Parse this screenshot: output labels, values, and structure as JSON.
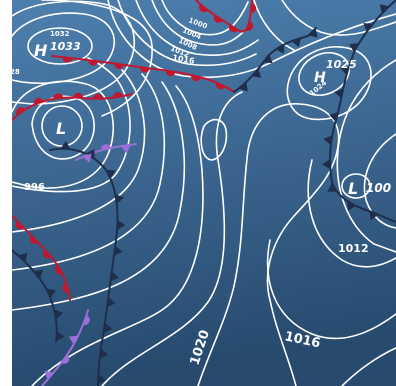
{
  "colors": {
    "sea_top": "#4d7fae",
    "sea_bottom": "#274a6e",
    "isobar": "#ffffff",
    "cold_front": "#1f2f4b",
    "warm_front": "#c0182f",
    "occluded_front": "#9a6fd8"
  },
  "pressure_centres": [
    {
      "type": "high",
      "symbol": "H",
      "value": "1033",
      "inner_isobar": "1032"
    },
    {
      "type": "high",
      "symbol": "H",
      "value": "1025",
      "inner_isobar": "1024"
    },
    {
      "type": "low",
      "symbol": "L",
      "value": ""
    },
    {
      "type": "low",
      "symbol": "L",
      "value": "100"
    }
  ],
  "isobar_labels": [
    "1000",
    "1004",
    "1008",
    "1012",
    "1016",
    "996",
    "1012",
    "1016",
    "1020",
    "28"
  ],
  "fronts": [
    "cold",
    "warm",
    "occluded"
  ]
}
